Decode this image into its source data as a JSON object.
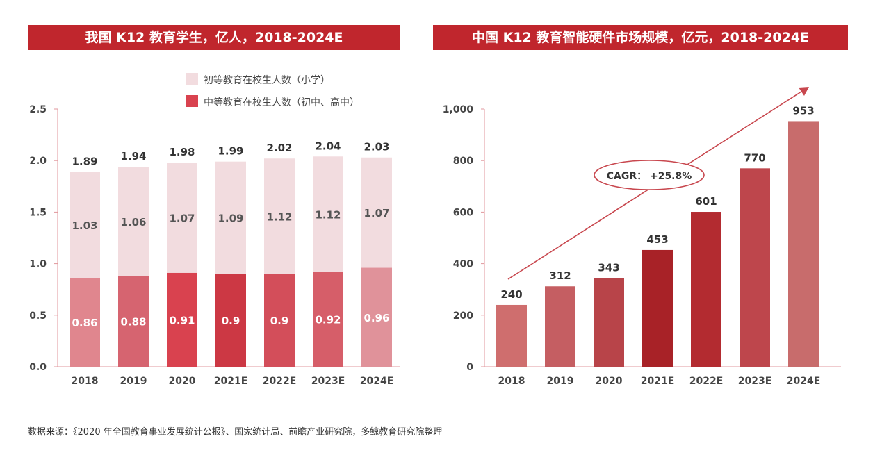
{
  "charts": {
    "left": {
      "title": "我国 K12 教育学生，亿人，2018-2024E"
    },
    "right": {
      "title": "中国 K12 教育智能硬件市场规模，亿元，2018-2024E"
    }
  },
  "source": "数据来源：《2020 年全国教育事业发展统计公报》、国家统计局、前瞻产业研究院，多鲸教育研究院整理",
  "colors": {
    "title_bg": "#c0262d",
    "primary_series": "#f2dcdf",
    "secondary_series": [
      "#e0868e",
      "#d66470",
      "#d9424f",
      "#cc3844",
      "#d34e5a",
      "#d65e69",
      "#e0929a"
    ],
    "market_bars": [
      "#cf6e6e",
      "#c55e62",
      "#b84449",
      "#a82227",
      "#b32b30",
      "#be464c",
      "#c86c6c"
    ],
    "axis": "#e0979c"
  },
  "chart_data": [
    {
      "type": "bar",
      "stacked": true,
      "title": "我国 K12 教育学生，亿人，2018-2024E",
      "categories": [
        "2018",
        "2019",
        "2020",
        "2021E",
        "2022E",
        "2023E",
        "2024E"
      ],
      "series": [
        {
          "name": "中等教育在校生人数（初中、高中）",
          "values": [
            0.86,
            0.88,
            0.91,
            0.9,
            0.9,
            0.92,
            0.96
          ]
        },
        {
          "name": "初等教育在校生人数（小学）",
          "values": [
            1.03,
            1.06,
            1.07,
            1.09,
            1.12,
            1.12,
            1.07
          ]
        }
      ],
      "totals": [
        "1.89",
        "1.94",
        "1.98",
        "1.99",
        "2.02",
        "2.04",
        "2.03"
      ],
      "ylim": [
        0,
        2.5
      ],
      "yticks": [
        "0.0",
        "0.5",
        "1.0",
        "1.5",
        "2.0",
        "2.5"
      ],
      "legend": "top-right",
      "grid": false
    },
    {
      "type": "bar",
      "title": "中国 K12 教育智能硬件市场规模，亿元，2018-2024E",
      "categories": [
        "2018",
        "2019",
        "2020",
        "2021E",
        "2022E",
        "2023E",
        "2024E"
      ],
      "values": [
        240,
        312,
        343,
        453,
        601,
        770,
        953
      ],
      "ylim": [
        0,
        1000
      ],
      "yticks": [
        "0",
        "200",
        "400",
        "600",
        "800",
        "1,000"
      ],
      "annotation": "CAGR： +25.8%",
      "grid": false
    }
  ]
}
